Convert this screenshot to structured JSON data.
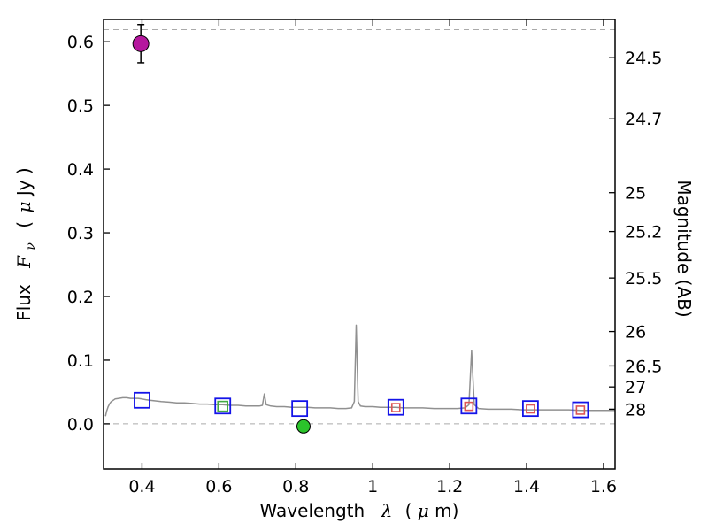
{
  "labels": {
    "ylabel": {
      "word": "Flux",
      "f": "F",
      "sub": "ν",
      "open": "(",
      "mu": "μ",
      "rest": "Jy )"
    },
    "xlabel": {
      "word": "Wavelength",
      "lambda": "λ",
      "open": "(",
      "mu": "μ",
      "rest": "m)"
    },
    "y2label": "Magnitude (AB)"
  },
  "chart_data": {
    "type": "line",
    "title": "",
    "xlabel": "Wavelength λ (μm)",
    "ylabel": "Flux Fν ( μJy )",
    "y2label": "Magnitude (AB)",
    "xlim": [
      0.3,
      1.63
    ],
    "ylim": [
      -0.071,
      0.635
    ],
    "grid": false,
    "legend": "none",
    "dashed_hlines": [
      0.0,
      0.619
    ],
    "xticks": {
      "values": [
        0.4,
        0.6,
        0.8,
        1.0,
        1.2,
        1.4,
        1.6
      ],
      "labels": [
        "0.4",
        "0.6",
        "0.8",
        "1",
        "1.2",
        "1.4",
        "1.6"
      ]
    },
    "yticks": {
      "values": [
        0.0,
        0.1,
        0.2,
        0.3,
        0.4,
        0.5,
        0.6
      ],
      "labels": [
        "0.0",
        "0.1",
        "0.2",
        "0.3",
        "0.4",
        "0.5",
        "0.6"
      ]
    },
    "y2ticks": {
      "labels": [
        "24.5",
        "24.7",
        "25",
        "25.2",
        "25.5",
        "26",
        "26.5",
        "27",
        "28"
      ],
      "flux_values": [
        0.575,
        0.479,
        0.363,
        0.302,
        0.229,
        0.145,
        0.091,
        0.058,
        0.023
      ]
    },
    "colors": {
      "frame": "#000000",
      "dashed": "#aaaaaa",
      "spectrum": "#909090",
      "model_square": "#1414e8",
      "obs_square_red": "#dd5555",
      "obs_square_green": "#44aa44",
      "circle_magenta": "#b5179e",
      "circle_green": "#2bc42b"
    },
    "series": [
      {
        "name": "model-spectrum",
        "kind": "line",
        "color": "#909090",
        "width": 1.5,
        "points": [
          [
            0.305,
            0.012
          ],
          [
            0.308,
            0.02
          ],
          [
            0.312,
            0.027
          ],
          [
            0.316,
            0.032
          ],
          [
            0.32,
            0.035
          ],
          [
            0.325,
            0.037
          ],
          [
            0.33,
            0.039
          ],
          [
            0.34,
            0.04
          ],
          [
            0.35,
            0.041
          ],
          [
            0.36,
            0.041
          ],
          [
            0.37,
            0.04
          ],
          [
            0.38,
            0.04
          ],
          [
            0.39,
            0.04
          ],
          [
            0.4,
            0.039
          ],
          [
            0.41,
            0.038
          ],
          [
            0.42,
            0.037
          ],
          [
            0.435,
            0.036
          ],
          [
            0.45,
            0.035
          ],
          [
            0.47,
            0.034
          ],
          [
            0.49,
            0.033
          ],
          [
            0.51,
            0.033
          ],
          [
            0.53,
            0.032
          ],
          [
            0.55,
            0.031
          ],
          [
            0.57,
            0.031
          ],
          [
            0.59,
            0.03
          ],
          [
            0.61,
            0.03
          ],
          [
            0.63,
            0.029
          ],
          [
            0.65,
            0.029
          ],
          [
            0.67,
            0.028
          ],
          [
            0.69,
            0.028
          ],
          [
            0.705,
            0.028
          ],
          [
            0.713,
            0.029
          ],
          [
            0.718,
            0.047
          ],
          [
            0.723,
            0.03
          ],
          [
            0.735,
            0.028
          ],
          [
            0.75,
            0.027
          ],
          [
            0.77,
            0.027
          ],
          [
            0.79,
            0.026
          ],
          [
            0.81,
            0.026
          ],
          [
            0.83,
            0.026
          ],
          [
            0.85,
            0.025
          ],
          [
            0.87,
            0.025
          ],
          [
            0.89,
            0.025
          ],
          [
            0.91,
            0.024
          ],
          [
            0.93,
            0.024
          ],
          [
            0.945,
            0.025
          ],
          [
            0.952,
            0.035
          ],
          [
            0.957,
            0.155
          ],
          [
            0.962,
            0.035
          ],
          [
            0.968,
            0.028
          ],
          [
            0.98,
            0.027
          ],
          [
            1.0,
            0.027
          ],
          [
            1.02,
            0.026
          ],
          [
            1.04,
            0.026
          ],
          [
            1.06,
            0.026
          ],
          [
            1.08,
            0.025
          ],
          [
            1.1,
            0.025
          ],
          [
            1.13,
            0.025
          ],
          [
            1.16,
            0.024
          ],
          [
            1.19,
            0.024
          ],
          [
            1.22,
            0.024
          ],
          [
            1.24,
            0.025
          ],
          [
            1.25,
            0.03
          ],
          [
            1.257,
            0.115
          ],
          [
            1.264,
            0.03
          ],
          [
            1.275,
            0.024
          ],
          [
            1.3,
            0.023
          ],
          [
            1.33,
            0.023
          ],
          [
            1.36,
            0.023
          ],
          [
            1.39,
            0.022
          ],
          [
            1.42,
            0.022
          ],
          [
            1.45,
            0.022
          ],
          [
            1.48,
            0.022
          ],
          [
            1.51,
            0.022
          ],
          [
            1.54,
            0.021
          ],
          [
            1.57,
            0.021
          ],
          [
            1.6,
            0.021
          ],
          [
            1.63,
            0.021
          ]
        ]
      },
      {
        "name": "model-photometry-squares",
        "kind": "open-square",
        "color": "#1414e8",
        "size": 17,
        "stroke_width": 1.8,
        "points": [
          [
            0.4,
            0.037
          ],
          [
            0.61,
            0.028
          ],
          [
            0.81,
            0.024
          ],
          [
            1.06,
            0.026
          ],
          [
            1.25,
            0.028
          ],
          [
            1.41,
            0.024
          ],
          [
            1.54,
            0.022
          ]
        ]
      },
      {
        "name": "observed-photometry-red-squares",
        "kind": "open-square",
        "color": "#dd5555",
        "size": 9,
        "stroke_width": 1.6,
        "points": [
          [
            1.06,
            0.0255
          ],
          [
            1.25,
            0.0275
          ],
          [
            1.41,
            0.0235
          ],
          [
            1.54,
            0.0215
          ]
        ]
      },
      {
        "name": "observed-photometry-green-square",
        "kind": "open-square",
        "color": "#44aa44",
        "size": 11,
        "stroke_width": 1.6,
        "points": [
          [
            0.61,
            0.0275
          ]
        ]
      },
      {
        "name": "observed-point-magenta",
        "kind": "filled-circle",
        "color": "#b5179e",
        "size": 9,
        "error": 0.03,
        "points": [
          [
            0.397,
            0.597
          ]
        ]
      },
      {
        "name": "observed-point-green",
        "kind": "filled-circle",
        "color": "#2bc42b",
        "size": 7.5,
        "error": 0.009,
        "points": [
          [
            0.82,
            -0.004
          ]
        ]
      }
    ]
  }
}
